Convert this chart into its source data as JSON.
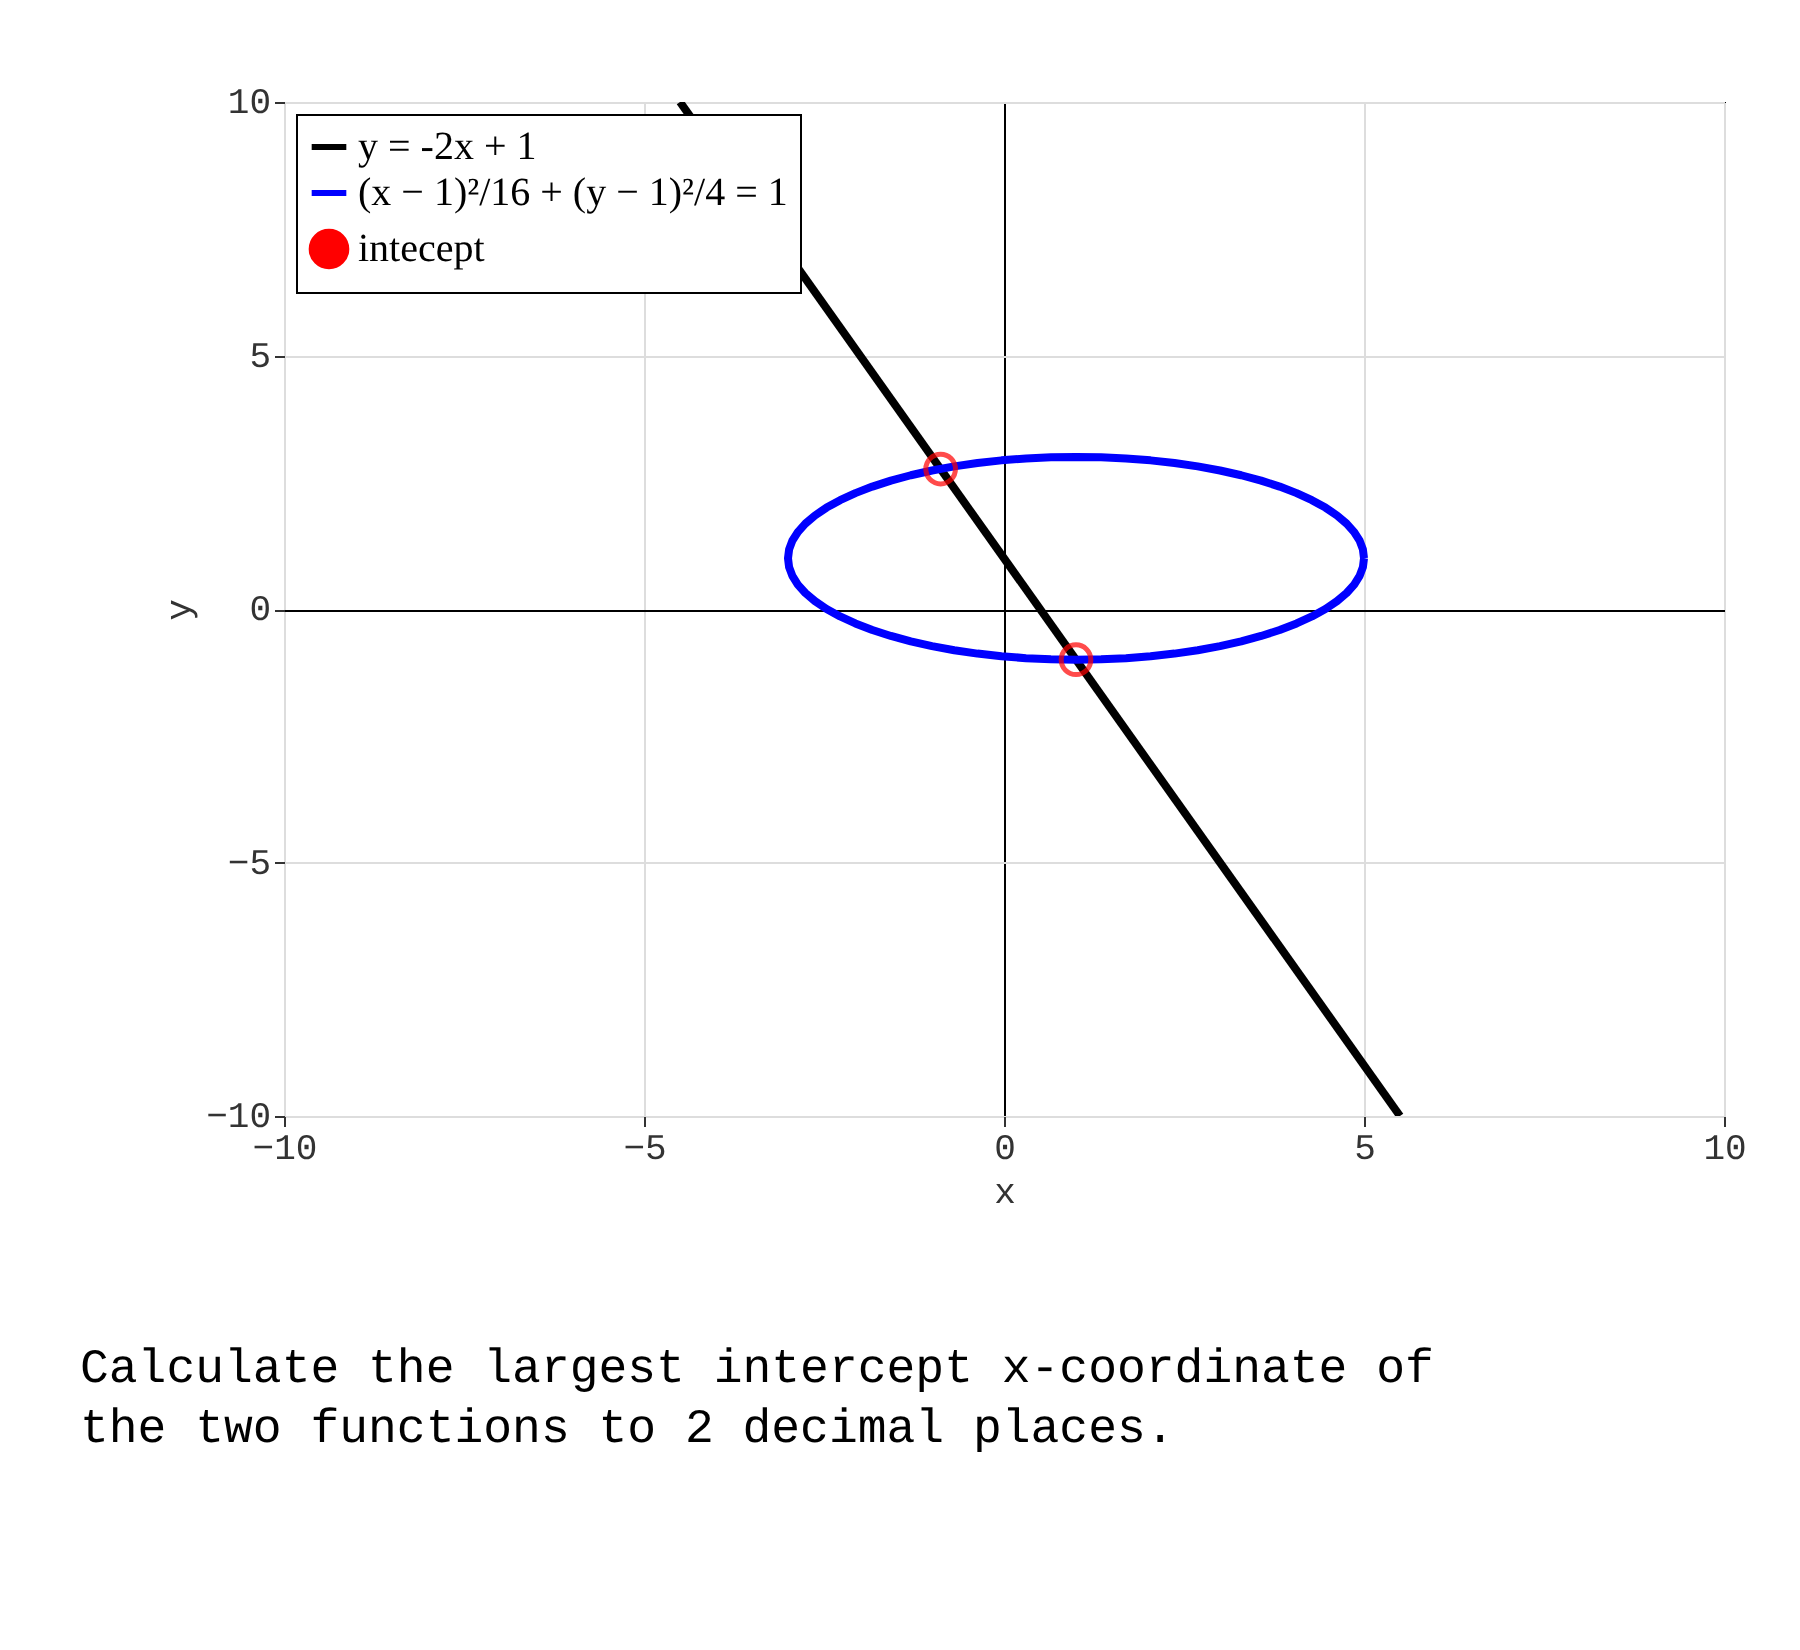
{
  "chart_data": {
    "type": "line",
    "xlabel": "x",
    "ylabel": "y",
    "xlim": [
      -10,
      10
    ],
    "ylim": [
      -10,
      10
    ],
    "xticks": [
      -10,
      -5,
      0,
      5,
      10
    ],
    "yticks": [
      -10,
      -5,
      0,
      5,
      10
    ],
    "grid": true,
    "legend": "top left",
    "series": [
      {
        "name": "y = -2x + 1",
        "color": "#000000",
        "type": "line",
        "x": [
          -4.5,
          5.5
        ],
        "values": [
          10,
          -10
        ]
      },
      {
        "name": "(x − 1)²/16 + (y − 1)²/4 = 1",
        "color": "#0000ff",
        "type": "line"
      },
      {
        "name": "intecept",
        "color": "#ff0000",
        "type": "scatter",
        "marker": "circle",
        "x": [
          -0.88,
          1
        ],
        "values": [
          2.76,
          -1
        ]
      }
    ],
    "annotations": [
      "Calculate the largest intercept x-coordinate of the two functions to 2 decimal places."
    ]
  }
}
